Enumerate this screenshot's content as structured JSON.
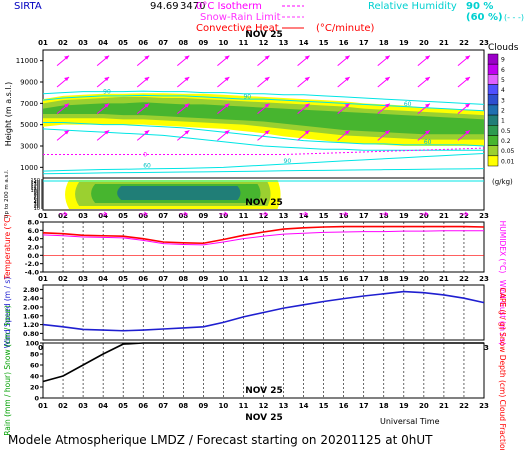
{
  "header": {
    "station": "SIRTA",
    "station_value": "94.69",
    "station_value2": "3470",
    "legend_isotherm": "0°C Isotherm",
    "legend_snow_rain": "Snow-Rain Limit",
    "legend_convective": "Convective Heat",
    "legend_convective_unit": "(°C/minute)",
    "legend_rh": "Relative Humidity",
    "rh_levels": [
      "90 %",
      "(60 %)"
    ],
    "rh_dash": "(- - -)",
    "clouds_label": "Clouds"
  },
  "colors": {
    "rh_line": "#00e5e5",
    "isotherm": "#ff00ff",
    "snow_rain": "#ff33ff",
    "convective": "#ff0000",
    "temperature": "#ff0000",
    "humidex": "#ff00ff",
    "wind": "#1f1fd0",
    "rain": "#000000",
    "arrow": "#ff00ff"
  },
  "time_axis": {
    "hours": [
      "01",
      "02",
      "03",
      "04",
      "05",
      "06",
      "07",
      "08",
      "09",
      "10",
      "11",
      "12",
      "13",
      "14",
      "15",
      "16",
      "17",
      "18",
      "19",
      "20",
      "21",
      "22",
      "23"
    ],
    "date_label": "NOV 25",
    "title": "Universal Time"
  },
  "chart_data": [
    {
      "type": "area",
      "name": "upper-air",
      "ylabel": "Height (m a.s.l.)",
      "yticks": [
        1000,
        3000,
        5000,
        7000,
        9000,
        11000
      ],
      "ylim": [
        0,
        12000
      ],
      "rh_labels": [
        "90",
        "90",
        "60",
        "60",
        "60",
        "90"
      ],
      "isotherm_label": "0",
      "colorbar": {
        "label": "Clouds",
        "unit": "(g/kg)",
        "ticks": [
          "9",
          "6",
          "5",
          "4",
          "3",
          "2",
          "1",
          "0.5",
          "0.2",
          "0.05",
          "0.01"
        ],
        "colors": [
          "#9b00c8",
          "#c000f0",
          "#e060ff",
          "#5050ff",
          "#2e4fd0",
          "#1f6fb0",
          "#207e77",
          "#2e9b50",
          "#47b52f",
          "#9bd030",
          "#ffff00"
        ]
      }
    },
    {
      "type": "area",
      "name": "lower-air",
      "ylabel": "Up to 200 m a.s.l.",
      "yticks": [
        10,
        20,
        30,
        40,
        50,
        60,
        70,
        80,
        90,
        100,
        110,
        120,
        130,
        140,
        150
      ],
      "ylim": [
        0,
        160
      ]
    },
    {
      "type": "line",
      "name": "temperature",
      "ylabel": "Temperature (°C)",
      "ylabel2": "HUMIDEX (°C)",
      "yticks": [
        "-4.0",
        "-2.0",
        "0.0",
        "2.0",
        "4.0",
        "6.0",
        "8.0"
      ],
      "ylim": [
        -4,
        8
      ],
      "x": [
        1,
        2,
        3,
        4,
        5,
        6,
        7,
        8,
        9,
        10,
        11,
        12,
        13,
        14,
        15,
        16,
        17,
        18,
        19,
        20,
        21,
        22,
        23
      ],
      "series": [
        {
          "name": "Temperature",
          "values": [
            5.4,
            5.2,
            4.8,
            4.7,
            4.6,
            4.0,
            3.2,
            3.0,
            2.9,
            3.8,
            4.8,
            5.6,
            6.3,
            6.6,
            6.8,
            6.9,
            6.9,
            6.9,
            6.9,
            6.9,
            6.9,
            6.9,
            6.8
          ]
        },
        {
          "name": "Humidex",
          "values": [
            4.9,
            4.7,
            4.4,
            4.3,
            4.2,
            3.6,
            2.8,
            2.6,
            2.5,
            3.2,
            4.0,
            4.6,
            5.1,
            5.3,
            5.5,
            5.6,
            5.7,
            5.7,
            5.8,
            5.8,
            5.9,
            5.9,
            5.9
          ]
        }
      ]
    },
    {
      "type": "line",
      "name": "wind",
      "ylabel": "Wind Speed (m / s)",
      "ylabel2": "Wind Gust (m / s)",
      "yticks": [
        "0.80",
        "1.20",
        "1.60",
        "2.00",
        "2.40",
        "2.80"
      ],
      "ylim": [
        0.5,
        3.0
      ],
      "x": [
        1,
        2,
        3,
        4,
        5,
        6,
        7,
        8,
        9,
        10,
        11,
        12,
        13,
        14,
        15,
        16,
        17,
        18,
        19,
        20,
        21,
        22,
        23
      ],
      "series": [
        {
          "name": "Wind Speed",
          "values": [
            1.2,
            1.1,
            0.98,
            0.95,
            0.92,
            0.95,
            1.0,
            1.05,
            1.1,
            1.3,
            1.55,
            1.75,
            1.95,
            2.1,
            2.25,
            2.38,
            2.5,
            2.6,
            2.7,
            2.65,
            2.55,
            2.4,
            2.2
          ]
        }
      ]
    },
    {
      "type": "line",
      "name": "rain",
      "ylabel": "Rain (mm / hour) Snow (cm / hour)",
      "ylabel2": "CAPE (J / g) Snow Depth (cm) Cloud Fraction",
      "yticks": [
        "0",
        "20",
        "40",
        "60",
        "80",
        "100"
      ],
      "ylim": [
        0,
        100
      ],
      "x": [
        1,
        2,
        3,
        4,
        5,
        6,
        7,
        8,
        9,
        10,
        11,
        12,
        13,
        14,
        15,
        16,
        17,
        18,
        19,
        20,
        21,
        22,
        23
      ],
      "series": [
        {
          "name": "Cloud Fraction",
          "values": [
            30,
            40,
            60,
            80,
            98,
            100,
            100,
            100,
            100,
            100,
            100,
            100,
            100,
            100,
            100,
            100,
            100,
            100,
            100,
            100,
            100,
            100,
            100
          ]
        }
      ]
    }
  ],
  "footer": {
    "text": "Modele Atmospherique LMDZ / Forecast starting on 20201125 at 0hUT"
  }
}
